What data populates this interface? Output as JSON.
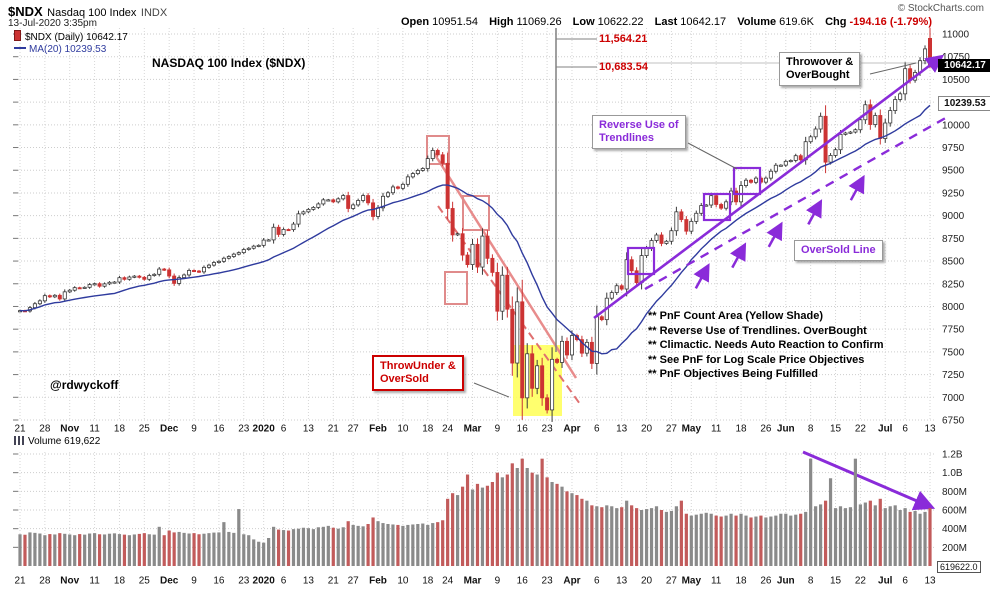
{
  "header": {
    "symbol": "$NDX",
    "name": "Nasdaq 100 Index",
    "exchange": "INDX",
    "datetime": "13-Jul-2020 3:35pm",
    "copyright": "© StockCharts.com",
    "quote": {
      "open_label": "Open",
      "open": "10951.54",
      "high_label": "High",
      "high": "11069.26",
      "low_label": "Low",
      "low": "10622.22",
      "last_label": "Last",
      "last": "10642.17",
      "vol_label": "Volume",
      "vol": "619.6K",
      "chg_label": "Chg",
      "chg": "-194.16 (-1.79%)"
    }
  },
  "legend": {
    "price": "$NDX (Daily) 10642.17",
    "ma": "MA(20) 10239.53"
  },
  "price_tags": {
    "last": "10642.17",
    "ma": "10239.53"
  },
  "volume_pane": {
    "legend": "Volume 619,622",
    "tag": "619622.0"
  },
  "annotations": {
    "chart_title": "NASDAQ 100 Index ($NDX)",
    "objective_upper": "11,564.21",
    "objective_lower": "10,683.54",
    "throwover": [
      "Throwover &",
      "OverBought"
    ],
    "reverse": [
      "Reverse Use of",
      "Trendlines"
    ],
    "oversold": "OverSold Line",
    "throwunder": [
      "ThrowUnder &",
      "OverSold"
    ],
    "notes": [
      "** PnF Count Area (Yellow Shade)",
      "** Reverse Use of Trendlines. OverBought",
      "** Climactic. Needs Auto Reaction to Confirm",
      "** See PnF for Log Scale Price Objectives",
      "** PnF Objectives Being Fulfilled"
    ],
    "watermark": "@rdwyckoff"
  },
  "colors": {
    "up_candle_stroke": "#3a3a3a",
    "down_candle": "#cc3333",
    "ma_line": "#2f3b9e",
    "trend_purple": "#8a2bd9",
    "trend_pink": "#e88c8c",
    "objective_red": "#cc0000",
    "yellow_shade": "#ffff55",
    "volume_up": "#8a8a8a",
    "volume_down": "#c25b5b",
    "grid": "#cdcdcd"
  },
  "chart_data": {
    "type": "candlestick",
    "title": "NASDAQ 100 Index ($NDX)",
    "symbol": "$NDX",
    "timeframe": "Daily",
    "y_axis": {
      "min": 6750,
      "max": 11000,
      "step": 250,
      "ticks": [
        11000,
        10750,
        10500,
        10250,
        10000,
        9750,
        9500,
        9250,
        9000,
        8750,
        8500,
        8250,
        8000,
        7750,
        7500,
        7250,
        7000,
        6750
      ]
    },
    "volume_axis_ticks": [
      {
        "l": "1.2B",
        "v": 1200
      },
      {
        "l": "1.0B",
        "v": 1000
      },
      {
        "l": "800M",
        "v": 800
      },
      {
        "l": "600M",
        "v": 600
      },
      {
        "l": "400M",
        "v": 400
      },
      {
        "l": "200M",
        "v": 200
      }
    ],
    "x_ticks": [
      {
        "l": "21",
        "i": 0
      },
      {
        "l": "28",
        "i": 5
      },
      {
        "l": "Nov",
        "i": 10,
        "b": 1
      },
      {
        "l": "11",
        "i": 15
      },
      {
        "l": "18",
        "i": 20
      },
      {
        "l": "25",
        "i": 25
      },
      {
        "l": "Dec",
        "i": 30,
        "b": 1
      },
      {
        "l": "9",
        "i": 35
      },
      {
        "l": "16",
        "i": 40
      },
      {
        "l": "23",
        "i": 45
      },
      {
        "l": "2020",
        "i": 49,
        "b": 1
      },
      {
        "l": "6",
        "i": 53
      },
      {
        "l": "13",
        "i": 58
      },
      {
        "l": "21",
        "i": 63
      },
      {
        "l": "27",
        "i": 67
      },
      {
        "l": "Feb",
        "i": 72,
        "b": 1
      },
      {
        "l": "10",
        "i": 77
      },
      {
        "l": "18",
        "i": 82
      },
      {
        "l": "24",
        "i": 86
      },
      {
        "l": "Mar",
        "i": 91,
        "b": 1
      },
      {
        "l": "9",
        "i": 96
      },
      {
        "l": "16",
        "i": 101
      },
      {
        "l": "23",
        "i": 106
      },
      {
        "l": "Apr",
        "i": 111,
        "b": 1
      },
      {
        "l": "6",
        "i": 116
      },
      {
        "l": "13",
        "i": 121
      },
      {
        "l": "20",
        "i": 126
      },
      {
        "l": "27",
        "i": 131
      },
      {
        "l": "May",
        "i": 135,
        "b": 1
      },
      {
        "l": "11",
        "i": 140
      },
      {
        "l": "18",
        "i": 145
      },
      {
        "l": "26",
        "i": 150
      },
      {
        "l": "Jun",
        "i": 154,
        "b": 1
      },
      {
        "l": "8",
        "i": 159
      },
      {
        "l": "15",
        "i": 164
      },
      {
        "l": "22",
        "i": 169
      },
      {
        "l": "Jul",
        "i": 174,
        "b": 1
      },
      {
        "l": "6",
        "i": 178
      },
      {
        "l": "13",
        "i": 183
      }
    ],
    "closes": [
      7954,
      7950,
      7987,
      8030,
      8062,
      8119,
      8106,
      8123,
      8083,
      8161,
      8179,
      8207,
      8205,
      8211,
      8241,
      8251,
      8223,
      8249,
      8266,
      8269,
      8317,
      8299,
      8324,
      8334,
      8321,
      8299,
      8341,
      8354,
      8412,
      8403,
      8335,
      8254,
      8318,
      8347,
      8397,
      8390,
      8381,
      8431,
      8455,
      8484,
      8497,
      8531,
      8550,
      8576,
      8593,
      8627,
      8641,
      8664,
      8673,
      8731,
      8733,
      8872,
      8793,
      8848,
      8846,
      8907,
      9020,
      9042,
      9069,
      9091,
      9129,
      9174,
      9174,
      9152,
      9185,
      9221,
      9079,
      9118,
      9167,
      9221,
      9141,
      8991,
      9086,
      9213,
      9252,
      9316,
      9301,
      9345,
      9427,
      9463,
      9498,
      9519,
      9628,
      9718,
      9670,
      9576,
      9079,
      8788,
      8801,
      8566,
      8461,
      8684,
      8434,
      8775,
      8530,
      8375,
      7948,
      8344,
      7970,
      7377,
      8051,
      6994,
      7479,
      7099,
      7347,
      6994,
      6861,
      7418,
      7384,
      7616,
      7466,
      7680,
      7635,
      7486,
      7605,
      7373,
      7887,
      7855,
      8091,
      8153,
      8228,
      8192,
      8515,
      8393,
      8263,
      8560,
      8640,
      8726,
      8787,
      8694,
      8718,
      8834,
      9042,
      8957,
      8829,
      8937,
      9026,
      9111,
      9117,
      9220,
      9123,
      9082,
      9152,
      9271,
      9152,
      9331,
      9390,
      9367,
      9413,
      9369,
      9413,
      9489,
      9555,
      9556,
      9598,
      9608,
      9660,
      9615,
      9814,
      9868,
      9954,
      10094,
      9589,
      9663,
      9726,
      9895,
      9910,
      9920,
      9946,
      10056,
      10221,
      10003,
      10103,
      9849,
      10020,
      10157,
      10279,
      10341,
      10618,
      10492,
      10577,
      10706,
      10836,
      10642
    ],
    "volumes_millions": [
      340,
      335,
      360,
      355,
      348,
      330,
      342,
      338,
      352,
      345,
      338,
      330,
      342,
      336,
      348,
      352,
      340,
      338,
      346,
      350,
      342,
      336,
      330,
      338,
      344,
      352,
      340,
      336,
      420,
      330,
      380,
      360,
      365,
      355,
      348,
      352,
      340,
      346,
      352,
      358,
      360,
      470,
      365,
      355,
      610,
      340,
      330,
      285,
      260,
      250,
      300,
      420,
      390,
      385,
      380,
      395,
      400,
      410,
      405,
      395,
      415,
      420,
      430,
      410,
      400,
      415,
      480,
      440,
      430,
      425,
      450,
      520,
      480,
      460,
      450,
      445,
      440,
      430,
      440,
      445,
      450,
      455,
      440,
      460,
      470,
      490,
      720,
      780,
      760,
      850,
      980,
      820,
      880,
      840,
      860,
      900,
      1000,
      950,
      980,
      1100,
      1050,
      1150,
      1050,
      1000,
      980,
      1150,
      950,
      900,
      880,
      850,
      800,
      780,
      760,
      720,
      700,
      650,
      640,
      630,
      650,
      640,
      620,
      630,
      700,
      650,
      620,
      600,
      610,
      620,
      640,
      600,
      580,
      590,
      640,
      700,
      560,
      540,
      550,
      560,
      570,
      560,
      540,
      530,
      540,
      560,
      540,
      560,
      540,
      520,
      530,
      540,
      520,
      530,
      540,
      560,
      560,
      540,
      550,
      560,
      580,
      1150,
      640,
      660,
      700,
      940,
      620,
      640,
      620,
      630,
      1150,
      660,
      680,
      700,
      650,
      720,
      620,
      640,
      650,
      600,
      620,
      580,
      590,
      560,
      580,
      620
    ],
    "last_bar_ohlc": {
      "open": 10951.54,
      "high": 11069.26,
      "low": 10622.22,
      "close": 10642.17
    },
    "last_volume": 619622,
    "ma_period": 20,
    "ma_last": 10239.53,
    "price_objectives": [
      11564.21,
      10683.54
    ]
  }
}
